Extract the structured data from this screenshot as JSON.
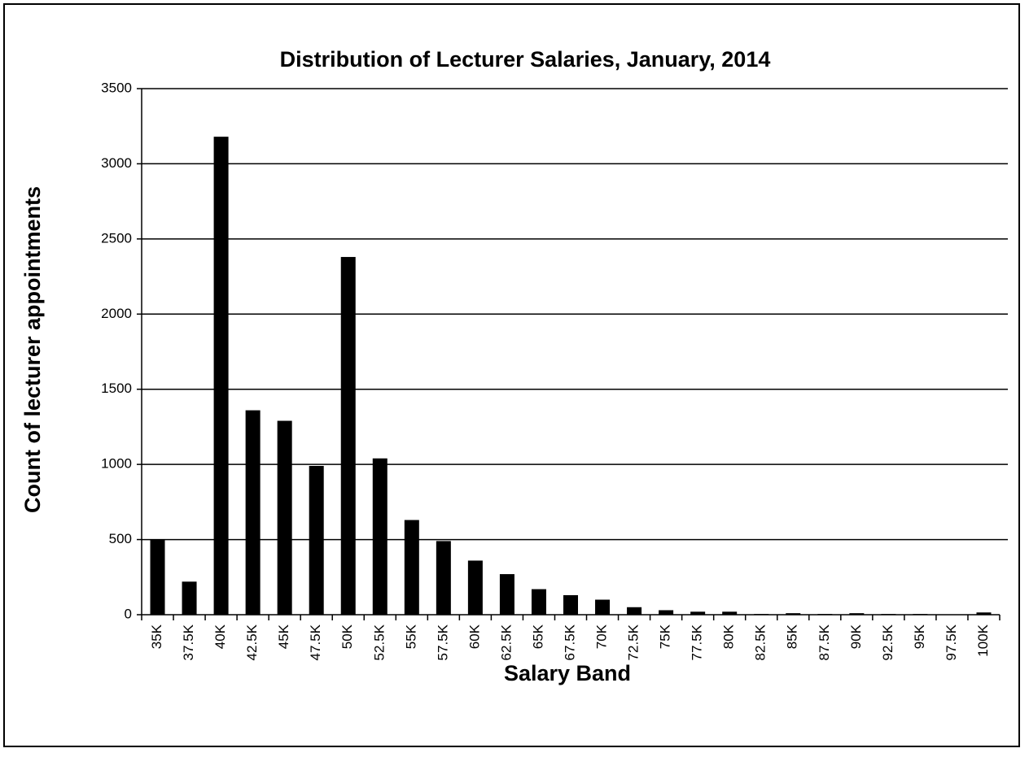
{
  "chart_data": {
    "type": "bar",
    "title": "Distribution of Lecturer Salaries, January, 2014",
    "x_label": "Salary Band",
    "y_label": "Count of lecturer appointments",
    "categories": [
      "35K",
      "37.5K",
      "40K",
      "42.5K",
      "45K",
      "47.5K",
      "50K",
      "52.5K",
      "55K",
      "57.5K",
      "60K",
      "62.5K",
      "65K",
      "67.5K",
      "70K",
      "72.5K",
      "75K",
      "77.5K",
      "80K",
      "82.5K",
      "85K",
      "87.5K",
      "90K",
      "92.5K",
      "95K",
      "97.5K",
      "100K"
    ],
    "values": [
      500,
      220,
      3180,
      1360,
      1290,
      990,
      2380,
      1040,
      630,
      490,
      360,
      270,
      170,
      130,
      100,
      50,
      30,
      20,
      20,
      5,
      10,
      5,
      10,
      5,
      5,
      0,
      15
    ],
    "color": "#000000",
    "ylim": [
      0,
      3500
    ],
    "yticks": [
      0,
      500,
      1000,
      1500,
      2000,
      2500,
      3000,
      3500
    ],
    "grid": true
  }
}
